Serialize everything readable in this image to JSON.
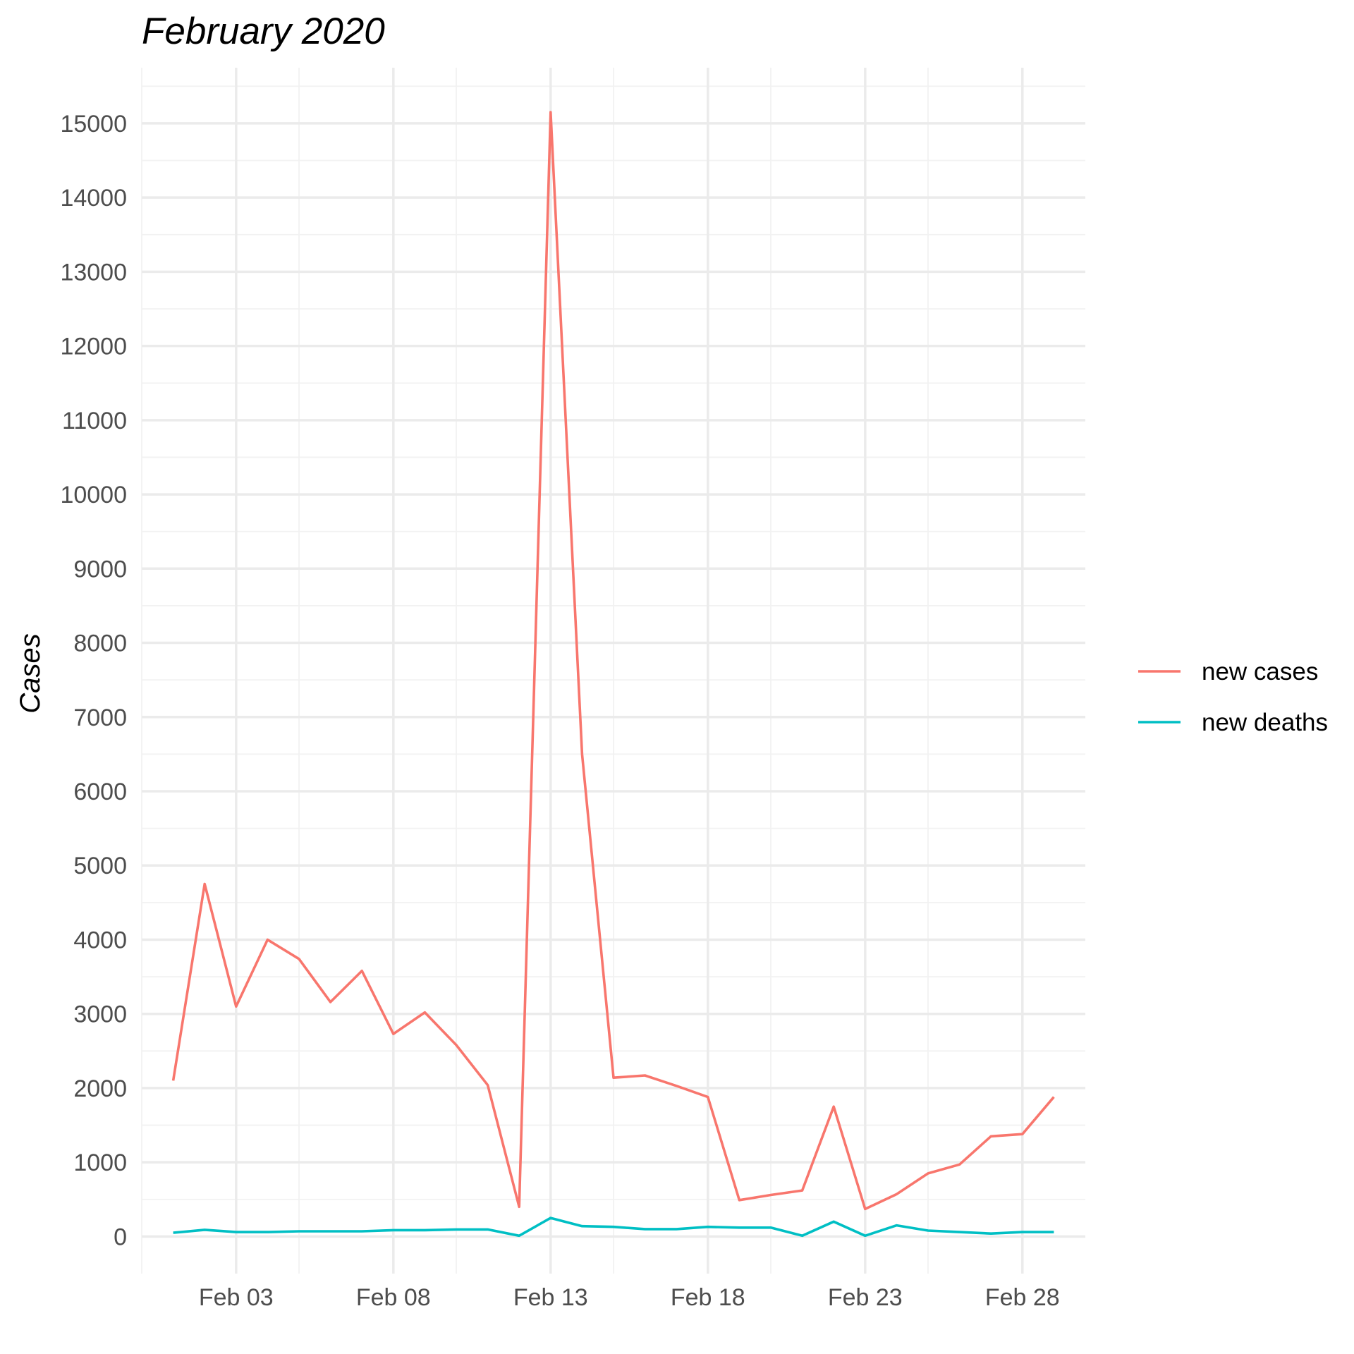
{
  "chart_data": {
    "type": "line",
    "title": "February 2020",
    "xlabel": "",
    "ylabel": "Cases",
    "x": [
      "2020-02-01",
      "2020-02-02",
      "2020-02-03",
      "2020-02-04",
      "2020-02-05",
      "2020-02-06",
      "2020-02-07",
      "2020-02-08",
      "2020-02-09",
      "2020-02-10",
      "2020-02-11",
      "2020-02-12",
      "2020-02-13",
      "2020-02-14",
      "2020-02-15",
      "2020-02-16",
      "2020-02-17",
      "2020-02-18",
      "2020-02-19",
      "2020-02-20",
      "2020-02-21",
      "2020-02-22",
      "2020-02-23",
      "2020-02-24",
      "2020-02-25",
      "2020-02-26",
      "2020-02-27",
      "2020-02-28",
      "2020-02-29"
    ],
    "x_ticks": [
      {
        "date": "2020-02-03",
        "label": "Feb 03"
      },
      {
        "date": "2020-02-08",
        "label": "Feb 08"
      },
      {
        "date": "2020-02-13",
        "label": "Feb 13"
      },
      {
        "date": "2020-02-18",
        "label": "Feb 18"
      },
      {
        "date": "2020-02-23",
        "label": "Feb 23"
      },
      {
        "date": "2020-02-28",
        "label": "Feb 28"
      }
    ],
    "xlim": [
      "2020-01-31",
      "2020-03-01"
    ],
    "ylim": [
      -500,
      15750
    ],
    "y_ticks": [
      0,
      1000,
      2000,
      3000,
      4000,
      5000,
      6000,
      7000,
      8000,
      9000,
      10000,
      11000,
      12000,
      13000,
      14000,
      15000
    ],
    "grid": true,
    "legend_position": "right",
    "series": [
      {
        "name": "new cases",
        "color": "#F8766D",
        "values": [
          2100,
          4750,
          3100,
          4000,
          3740,
          3160,
          3580,
          2730,
          3020,
          2580,
          2040,
          400,
          15150,
          6500,
          2140,
          2170,
          2030,
          1880,
          490,
          560,
          620,
          1750,
          370,
          570,
          850,
          970,
          1350,
          1380,
          1880
        ]
      },
      {
        "name": "new deaths",
        "color": "#00BFC4",
        "values": [
          50,
          90,
          60,
          60,
          70,
          70,
          70,
          85,
          85,
          95,
          95,
          10,
          250,
          140,
          130,
          100,
          100,
          130,
          120,
          120,
          10,
          200,
          10,
          150,
          80,
          60,
          40,
          60,
          60
        ]
      }
    ]
  }
}
